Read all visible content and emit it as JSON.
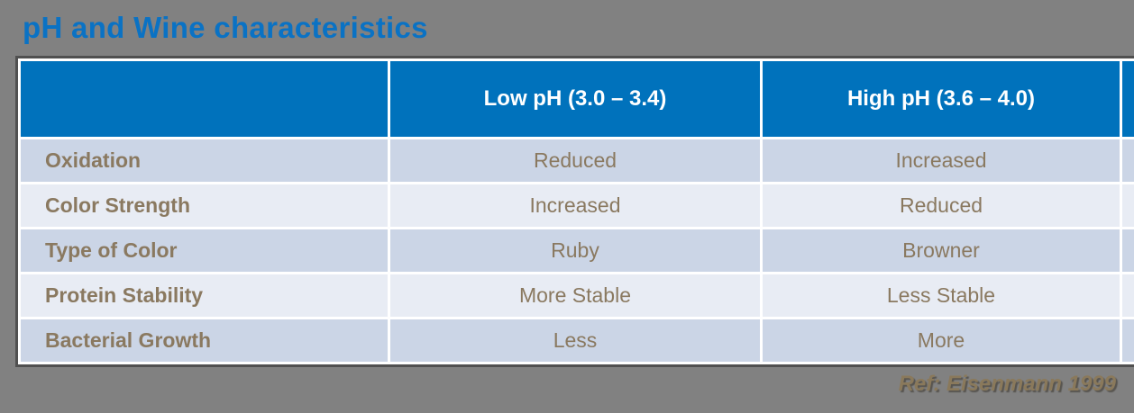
{
  "slide": {
    "background_color": "#818181",
    "title": {
      "text": "pH and Wine characteristics",
      "color": "#0A72C4"
    },
    "reference": "Ref: Eisenmann 1999"
  },
  "table": {
    "type": "table",
    "header": {
      "background_color": "#0072BC",
      "text_color": "#FFFFFF",
      "columns": [
        "",
        "Low pH (3.0 – 3.4)",
        "High pH (3.6 – 4.0)"
      ]
    },
    "band_colors": {
      "odd_rows": "#CBD5E6",
      "even_rows": "#E8ECF4"
    },
    "body_text_color": "#8A7960",
    "border_color": "#505050",
    "rows": [
      {
        "label": "Oxidation",
        "low_ph": "Reduced",
        "high_ph": "Increased"
      },
      {
        "label": "Color Strength",
        "low_ph": "Increased",
        "high_ph": "Reduced"
      },
      {
        "label": "Type of Color",
        "low_ph": "Ruby",
        "high_ph": "Browner"
      },
      {
        "label": "Protein Stability",
        "low_ph": "More Stable",
        "high_ph": "Less Stable"
      },
      {
        "label": "Bacterial Growth",
        "low_ph": "Less",
        "high_ph": "More"
      }
    ]
  }
}
